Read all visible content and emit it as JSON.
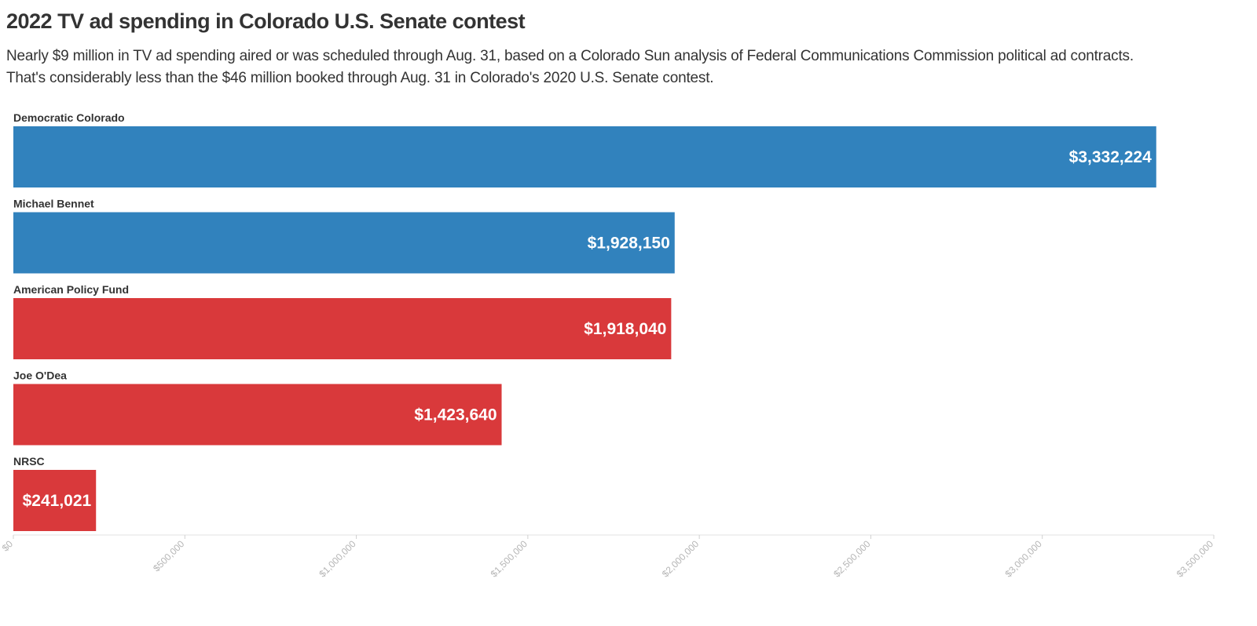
{
  "chart_data": {
    "type": "bar",
    "orientation": "horizontal",
    "title": "2022 TV ad spending in Colorado U.S. Senate contest",
    "subtitle_lines": [
      "Nearly $9 million in TV ad spending aired or was scheduled through Aug. 31, based on a Colorado Sun analysis of Federal Communications Commission political ad contracts.",
      "That's considerably less than the $46 million booked through Aug. 31 in Colorado's 2020 U.S. Senate contest."
    ],
    "categories": [
      "Democratic Colorado",
      "Michael Bennet",
      "American Policy Fund",
      "Joe O'Dea",
      "NRSC"
    ],
    "values": [
      3332224,
      1928150,
      1918040,
      1423640,
      241021
    ],
    "value_labels": [
      "$3,332,224",
      "$1,928,150",
      "$1,918,040",
      "$1,423,640",
      "$241,021"
    ],
    "colors": [
      "#3182bd",
      "#3182bd",
      "#d9393b",
      "#d9393b",
      "#d9393b"
    ],
    "xlim": [
      0,
      3500000
    ],
    "x_ticks": [
      0,
      500000,
      1000000,
      1500000,
      2000000,
      2500000,
      3000000,
      3500000
    ],
    "x_tick_labels": [
      "$0",
      "$500,000",
      "$1,000,000",
      "$1,500,000",
      "$2,000,000",
      "$2,500,000",
      "$3,000,000",
      "$3,500,000"
    ],
    "grid": false
  }
}
